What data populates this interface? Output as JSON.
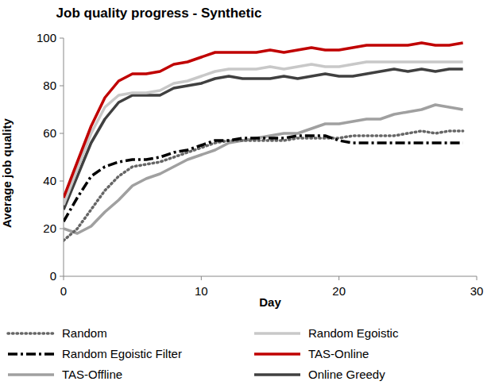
{
  "chart_data": {
    "type": "line",
    "title": "Job quality progress - Synthetic",
    "x_label": "Day",
    "y_label": "Average job quality",
    "x": [
      0,
      1,
      2,
      3,
      4,
      5,
      6,
      7,
      8,
      9,
      10,
      11,
      12,
      13,
      14,
      15,
      16,
      17,
      18,
      19,
      20,
      21,
      22,
      23,
      24,
      25,
      26,
      27,
      28,
      29
    ],
    "xlim": [
      0,
      30
    ],
    "xticks": [
      0,
      10,
      20,
      30
    ],
    "ylim": [
      0,
      100
    ],
    "yticks": [
      0,
      20,
      40,
      60,
      80,
      100
    ],
    "grid": false,
    "legend": "bottom",
    "series": [
      {
        "name": "Random",
        "color": "#666666",
        "line_style": "dotted",
        "values": [
          15,
          20,
          28,
          36,
          42,
          46,
          47,
          48,
          50,
          52,
          54,
          56,
          57,
          57,
          57,
          57,
          57,
          58,
          58,
          58,
          58,
          59,
          59,
          59,
          59,
          60,
          61,
          60,
          61,
          61
        ]
      },
      {
        "name": "Random Egoistic",
        "color": "#c8c8c8",
        "line_style": "solid",
        "values": [
          30,
          45,
          60,
          71,
          76,
          77,
          77,
          78,
          81,
          82,
          84,
          86,
          87,
          87,
          87,
          88,
          87,
          88,
          89,
          88,
          88,
          89,
          90,
          90,
          90,
          90,
          90,
          90,
          90,
          90
        ]
      },
      {
        "name": "Random Egoistic Filter",
        "color": "#000000",
        "line_style": "dashdot",
        "values": [
          23,
          33,
          42,
          46,
          48,
          49,
          49,
          50,
          52,
          53,
          55,
          57,
          57,
          58,
          58,
          58,
          58,
          59,
          59,
          59,
          57,
          56,
          56,
          56,
          56,
          56,
          56,
          56,
          56,
          56
        ]
      },
      {
        "name": "TAS-Online",
        "color": "#c00000",
        "line_style": "solid",
        "values": [
          33,
          48,
          63,
          75,
          82,
          85,
          85,
          86,
          89,
          90,
          92,
          94,
          94,
          94,
          94,
          95,
          94,
          95,
          96,
          95,
          95,
          96,
          97,
          97,
          97,
          97,
          98,
          97,
          97,
          98
        ]
      },
      {
        "name": "TAS-Offline",
        "color": "#a0a0a0",
        "line_style": "solid",
        "values": [
          20,
          18,
          21,
          27,
          32,
          38,
          41,
          43,
          46,
          49,
          51,
          53,
          56,
          57,
          58,
          59,
          60,
          60,
          62,
          64,
          64,
          65,
          66,
          66,
          68,
          69,
          70,
          72,
          71,
          70
        ]
      },
      {
        "name": "Online Greedy",
        "color": "#404040",
        "line_style": "solid",
        "values": [
          28,
          42,
          56,
          66,
          73,
          76,
          76,
          76,
          79,
          80,
          81,
          83,
          84,
          83,
          83,
          83,
          84,
          83,
          84,
          85,
          84,
          84,
          85,
          86,
          87,
          86,
          87,
          86,
          87,
          87
        ]
      }
    ]
  }
}
